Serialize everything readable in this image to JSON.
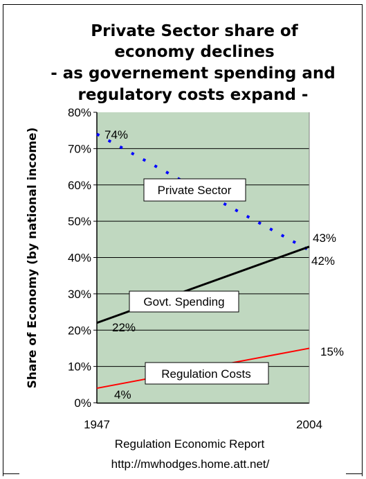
{
  "chart_data": {
    "type": "line",
    "title_lines": [
      "Private Sector share of",
      "economy declines",
      "- as governement spending and",
      "regulatory costs expand -"
    ],
    "ylabel": "Share of Economy (by national income)",
    "yticks": [
      "0%",
      "10%",
      "20%",
      "30%",
      "40%",
      "50%",
      "60%",
      "70%",
      "80%"
    ],
    "ylim": [
      0,
      80
    ],
    "x": [
      1947,
      2004
    ],
    "xtick_labels": [
      "1947",
      "2004"
    ],
    "grid": true,
    "series": [
      {
        "name": "Private Sector",
        "values": [
          74,
          42
        ],
        "color": "#0000ff",
        "style": "dotted",
        "start_label": "74%",
        "end_label": "42%"
      },
      {
        "name": "Govt. Spending",
        "values": [
          22,
          43
        ],
        "color": "#000000",
        "style": "solid",
        "start_label": "22%",
        "end_label": "43%"
      },
      {
        "name": "Regulation Costs",
        "values": [
          4,
          15
        ],
        "color": "#ff0000",
        "style": "solid",
        "start_label": "4%",
        "end_label": "15%"
      }
    ],
    "colors": {
      "plot_bg": "#c0d8c0",
      "grid": "#000000"
    }
  },
  "footer": {
    "source": "Regulation Economic Report",
    "url": "http://mwhodges.home.att.net/"
  }
}
